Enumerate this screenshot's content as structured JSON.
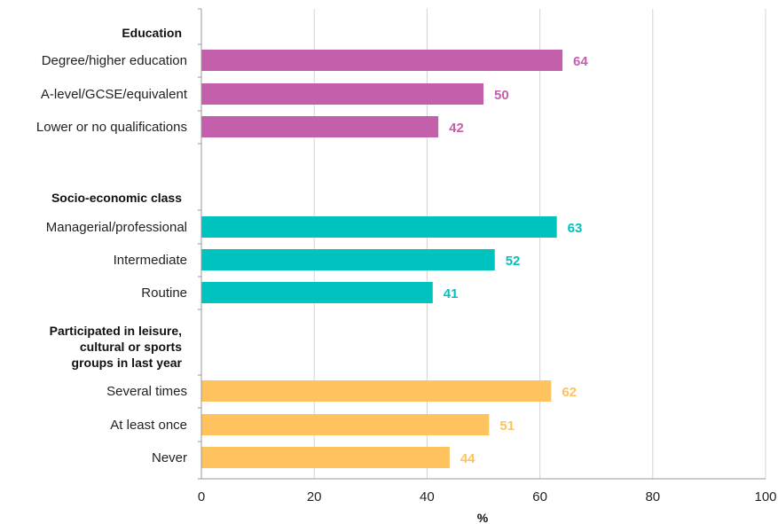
{
  "chart_data": {
    "type": "bar",
    "orientation": "horizontal",
    "xlabel": "%",
    "xlim": [
      0,
      100
    ],
    "xticks": [
      0,
      20,
      40,
      60,
      80,
      100
    ],
    "grid": true,
    "groups": [
      {
        "label": "Education",
        "color": "#c45fac",
        "categories": [
          "Degree/higher education",
          "A-level/GCSE/equivalent",
          "Lower or no qualifications"
        ],
        "values": [
          64,
          50,
          42
        ]
      },
      {
        "label": "Socio-economic class",
        "color": "#00c2bf",
        "categories": [
          "Managerial/professional",
          "Intermediate",
          "Routine"
        ],
        "values": [
          63,
          52,
          41
        ]
      },
      {
        "label": "Participated in leisure, cultural or sports groups in last year",
        "label_lines": [
          "Participated in leisure,",
          "cultural or sports",
          "groups in last year"
        ],
        "color": "#fec35e",
        "categories": [
          "Several times",
          "At least once",
          "Never"
        ],
        "values": [
          62,
          51,
          44
        ]
      }
    ]
  }
}
